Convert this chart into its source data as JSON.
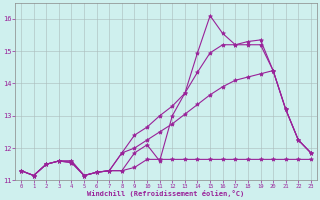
{
  "xlabel": "Windchill (Refroidissement éolien,°C)",
  "background_color": "#cff0ee",
  "grid_color": "#aacccc",
  "line_color": "#992299",
  "x": [
    0,
    1,
    2,
    3,
    4,
    5,
    6,
    7,
    8,
    9,
    10,
    11,
    12,
    13,
    14,
    15,
    16,
    17,
    18,
    19,
    20,
    21,
    22,
    23
  ],
  "line1": [
    11.3,
    11.15,
    11.5,
    11.6,
    11.6,
    11.15,
    11.25,
    11.3,
    11.3,
    11.85,
    12.1,
    11.6,
    13.0,
    13.7,
    14.95,
    16.1,
    15.55,
    15.2,
    15.3,
    15.35,
    14.4,
    13.2,
    12.25,
    11.85
  ],
  "line2": [
    11.3,
    11.15,
    11.5,
    11.6,
    11.6,
    11.15,
    11.25,
    11.3,
    11.3,
    11.4,
    11.65,
    11.65,
    11.65,
    11.65,
    11.65,
    11.65,
    11.65,
    11.65,
    11.65,
    11.65,
    11.65,
    11.65,
    11.65,
    11.65
  ],
  "line3": [
    11.3,
    11.15,
    11.5,
    11.6,
    11.55,
    11.15,
    11.25,
    11.3,
    11.85,
    12.4,
    12.65,
    13.0,
    13.3,
    13.7,
    14.35,
    14.95,
    15.2,
    15.2,
    15.2,
    15.2,
    14.4,
    13.2,
    12.25,
    11.85
  ],
  "line4": [
    11.3,
    11.15,
    11.5,
    11.6,
    11.55,
    11.15,
    11.25,
    11.3,
    11.85,
    12.0,
    12.25,
    12.5,
    12.75,
    13.05,
    13.35,
    13.65,
    13.9,
    14.1,
    14.2,
    14.3,
    14.4,
    13.2,
    12.25,
    11.85
  ],
  "ylim": [
    11.0,
    16.5
  ],
  "xlim": [
    -0.5,
    23.5
  ],
  "yticks": [
    11,
    12,
    13,
    14,
    15,
    16
  ]
}
